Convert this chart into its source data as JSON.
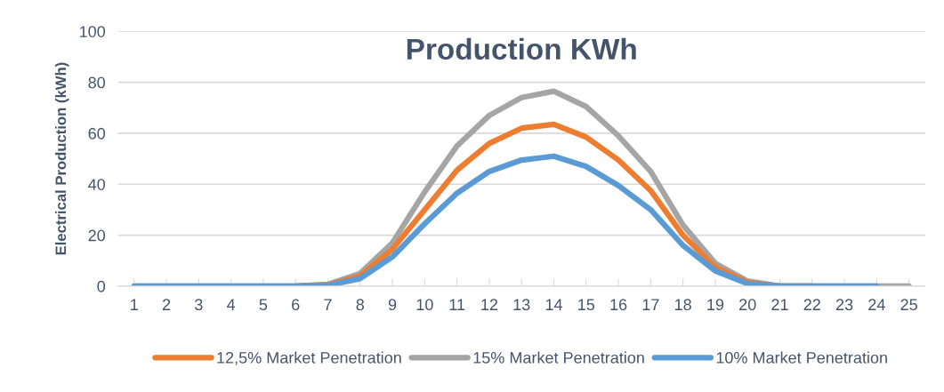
{
  "chart_data": {
    "type": "line",
    "title": "Production KWh",
    "ylabel": "Electrical Production (kWh)",
    "categories": [
      "1",
      "2",
      "3",
      "4",
      "5",
      "6",
      "7",
      "8",
      "9",
      "10",
      "11",
      "12",
      "13",
      "14",
      "15",
      "16",
      "17",
      "18",
      "19",
      "20",
      "21",
      "22",
      "23",
      "24",
      "25"
    ],
    "series": [
      {
        "name": "12,5% Market Penetration",
        "color": "#ed7d31",
        "values": [
          null,
          null,
          null,
          null,
          null,
          0,
          0.5,
          4,
          14.5,
          30,
          45.5,
          56,
          62,
          63.5,
          58.5,
          49.5,
          37.5,
          20,
          7.5,
          1.5,
          0,
          0,
          null,
          null,
          null
        ]
      },
      {
        "name": "15% Market Penetration",
        "color": "#a5a5a5",
        "values": [
          0,
          0,
          0,
          0,
          0,
          0,
          0.7,
          5,
          17,
          37,
          55,
          67,
          74,
          76.5,
          70.5,
          59,
          45,
          24,
          9,
          2,
          0,
          0,
          0,
          0,
          0
        ]
      },
      {
        "name": "10% Market Penetration",
        "color": "#5b9bd5",
        "values": [
          0,
          0,
          0,
          0,
          0,
          0,
          0.3,
          3,
          11.5,
          24.5,
          36.5,
          45,
          49.5,
          51,
          47,
          39.5,
          30,
          16,
          6,
          1,
          0,
          0,
          0,
          0,
          null
        ]
      }
    ],
    "ylim": [
      0,
      100
    ],
    "yticks": [
      0,
      20,
      40,
      60,
      80,
      100
    ],
    "grid": "y",
    "legend": "bottom",
    "marker": "none",
    "line_style": "solid"
  }
}
